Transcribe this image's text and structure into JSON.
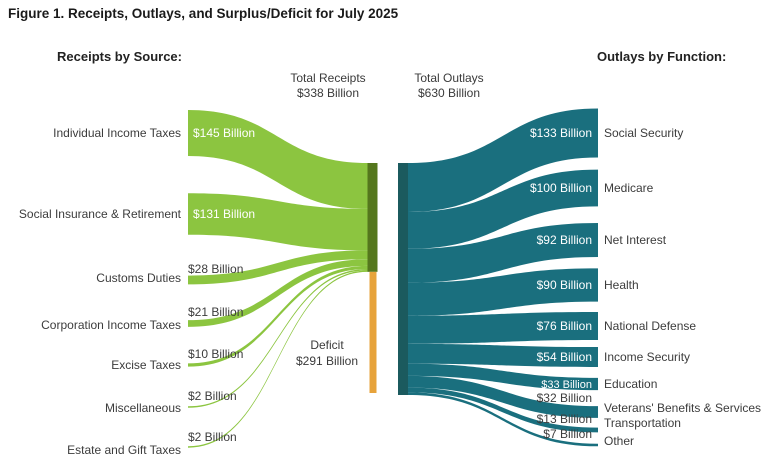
{
  "chart_data": {
    "type": "sankey",
    "title": "Figure 1. Receipts, Outlays, and Surplus/Deficit for July 2025",
    "left_header": "Receipts by Source:",
    "right_header": "Outlays by Function:",
    "totals": {
      "receipts": {
        "label": "Total Receipts",
        "value": 338,
        "value_label": "$338 Billion"
      },
      "outlays": {
        "label": "Total Outlays",
        "value": 630,
        "value_label": "$630 Billion"
      }
    },
    "deficit": {
      "label": "Deficit",
      "value": 291,
      "value_label": "$291 Billion"
    },
    "receipts": [
      {
        "name": "Individual Income Taxes",
        "value": 145,
        "value_label": "$145 Billion"
      },
      {
        "name": "Social Insurance & Retirement",
        "value": 131,
        "value_label": "$131 Billion"
      },
      {
        "name": "Customs Duties",
        "value": 28,
        "value_label": "$28 Billion"
      },
      {
        "name": "Corporation Income Taxes",
        "value": 21,
        "value_label": "$21 Billion"
      },
      {
        "name": "Excise Taxes",
        "value": 10,
        "value_label": "$10 Billion"
      },
      {
        "name": "Miscellaneous",
        "value": 2,
        "value_label": "$2 Billion"
      },
      {
        "name": "Estate and Gift Taxes",
        "value": 2,
        "value_label": "$2 Billion"
      }
    ],
    "outlays": [
      {
        "name": "Social Security",
        "value": 133,
        "value_label": "$133 Billion"
      },
      {
        "name": "Medicare",
        "value": 100,
        "value_label": "$100 Billion"
      },
      {
        "name": "Net Interest",
        "value": 92,
        "value_label": "$92 Billion"
      },
      {
        "name": "Health",
        "value": 90,
        "value_label": "$90 Billion"
      },
      {
        "name": "National Defense",
        "value": 76,
        "value_label": "$76 Billion"
      },
      {
        "name": "Income Security",
        "value": 54,
        "value_label": "$54 Billion"
      },
      {
        "name": "Education",
        "value": 33,
        "value_label": "$33 Billion"
      },
      {
        "name": "Veterans' Benefits & Services",
        "value": 32,
        "value_label": "$32 Billion"
      },
      {
        "name": "Transportation",
        "value": 13,
        "value_label": "$13 Billion"
      },
      {
        "name": "Other",
        "value": 7,
        "value_label": "$7 Billion"
      }
    ],
    "colors": {
      "receipts_flow": "#8cc540",
      "receipts_bar": "#55771d",
      "deficit_bar": "#e7a33b",
      "outlays_flow": "#1a6f7e",
      "outlays_bar": "#1b5a5e",
      "value_text_light": "#ffffff",
      "text_dark": "#3c3c3c"
    }
  }
}
